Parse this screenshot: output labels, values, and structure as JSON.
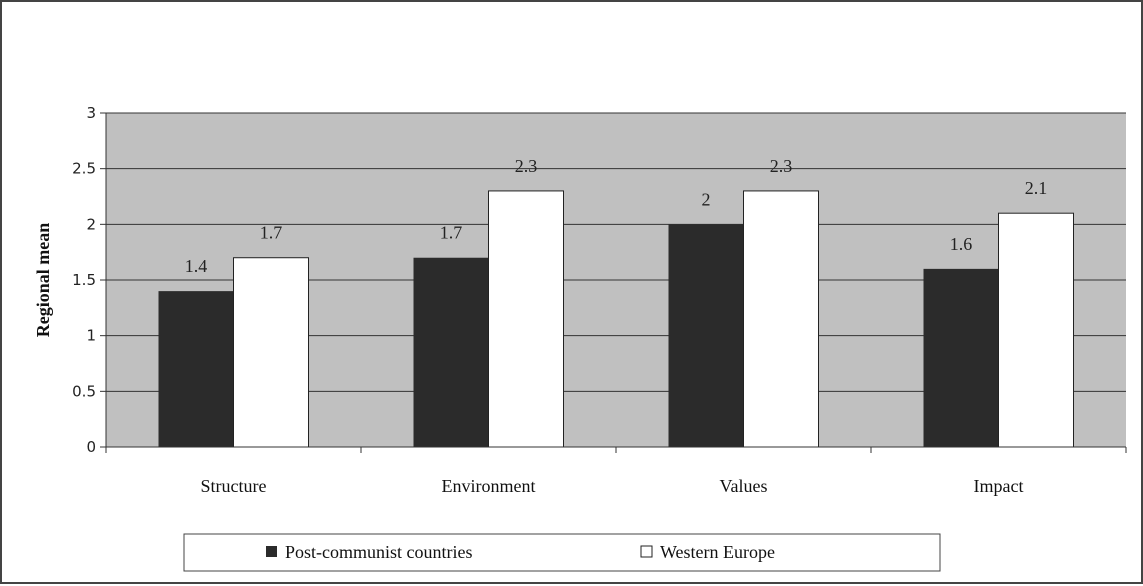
{
  "chart_data": {
    "type": "bar",
    "title": "",
    "xlabel": "",
    "ylabel": "Regional mean",
    "categories": [
      "Structure",
      "Environment",
      "Values",
      "Impact"
    ],
    "series": [
      {
        "name": "Post-communist countries",
        "values": [
          1.4,
          1.7,
          2,
          1.6
        ],
        "labels": [
          "1.4",
          "1.7",
          "2",
          "1.6"
        ],
        "color": "#2b2b2b"
      },
      {
        "name": "Western Europe",
        "values": [
          1.7,
          2.3,
          2.3,
          2.1
        ],
        "labels": [
          "1.7",
          "2.3",
          "2.3",
          "2.1"
        ],
        "color": "#ffffff"
      }
    ],
    "ylim": [
      0,
      3
    ],
    "yticks": [
      "0",
      "0.5",
      "1",
      "1.5",
      "2",
      "2.5",
      "3"
    ],
    "grid": true,
    "plot_background": "#c0c0c0",
    "legend_position": "bottom"
  }
}
